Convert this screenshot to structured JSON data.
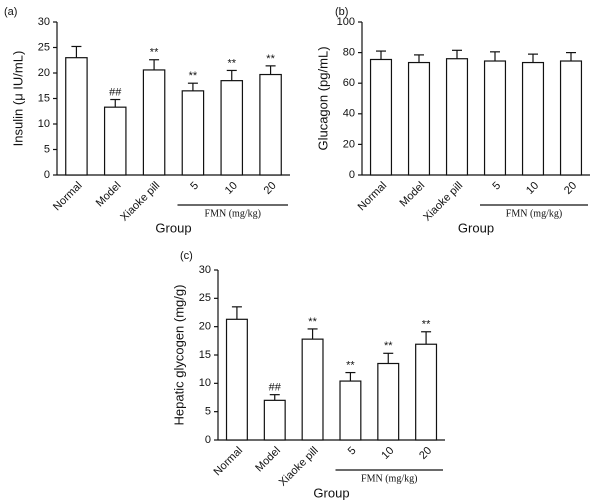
{
  "chart_data": [
    {
      "type": "bar",
      "panel": "(a)",
      "ylabel": "Insulin (μ IU/mL)",
      "xlabel": "Group",
      "group_label": "FMN (mg/kg)",
      "categories": [
        "Normal",
        "Model",
        "Xiaoke pill",
        "5",
        "10",
        "20"
      ],
      "values": [
        23,
        13.3,
        20.6,
        16.5,
        18.5,
        19.7
      ],
      "errors": [
        2.2,
        1.5,
        2,
        1.5,
        2,
        1.7
      ],
      "annotations": [
        null,
        "##",
        "**",
        "**",
        "**",
        "**"
      ],
      "ylim": [
        0,
        30
      ],
      "yticks": [
        0,
        5,
        10,
        15,
        20,
        25,
        30
      ],
      "color": "#ffffff"
    },
    {
      "type": "bar",
      "panel": "(b)",
      "ylabel": "Glucagon (pg/mL)",
      "xlabel": "Group",
      "group_label": "FMN (mg/kg)",
      "categories": [
        "Normal",
        "Model",
        "Xiaoke pill",
        "5",
        "10",
        "20"
      ],
      "values": [
        75.5,
        73.5,
        76,
        74.5,
        73.5,
        74.5
      ],
      "errors": [
        5.5,
        5,
        5.5,
        6,
        5.5,
        5.5
      ],
      "ylim": [
        0,
        100
      ],
      "yticks": [
        0,
        20,
        40,
        60,
        80,
        100
      ],
      "color": "#ffffff"
    },
    {
      "type": "bar",
      "panel": "(c)",
      "ylabel": "Hepatic glycogen (mg/g)",
      "xlabel": "Group",
      "group_label": "FMN (mg/kg)",
      "categories": [
        "Normal",
        "Model",
        "Xiaoke pill",
        "5",
        "10",
        "20"
      ],
      "values": [
        21.3,
        7,
        17.8,
        10.4,
        13.5,
        16.9
      ],
      "errors": [
        2.2,
        1,
        1.8,
        1.5,
        1.8,
        2.2
      ],
      "annotations": [
        null,
        "##",
        "**",
        "**",
        "**",
        "**"
      ],
      "ylim": [
        0,
        30
      ],
      "yticks": [
        0,
        5,
        10,
        15,
        20,
        25,
        30
      ],
      "color": "#ffffff"
    }
  ]
}
